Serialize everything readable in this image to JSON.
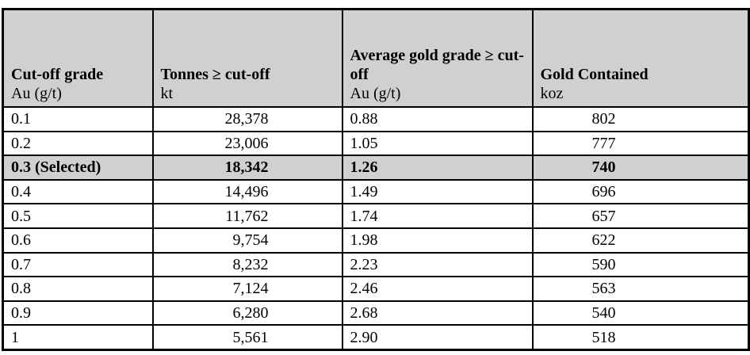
{
  "table": {
    "columns": [
      {
        "title": "Cut-off grade",
        "unit": "Au (g/t)"
      },
      {
        "title": "Tonnes ≥ cut-off",
        "unit": "kt"
      },
      {
        "title": "Average gold grade ≥ cut-off",
        "unit": "Au (g/t)"
      },
      {
        "title": "Gold Contained",
        "unit": "koz"
      }
    ],
    "rows": [
      {
        "cutoff": "0.1",
        "tonnes": "28,378",
        "grade": "0.88",
        "gold": "802",
        "selected": false
      },
      {
        "cutoff": "0.2",
        "tonnes": "23,006",
        "grade": "1.05",
        "gold": "777",
        "selected": false
      },
      {
        "cutoff": "0.3 (Selected)",
        "tonnes": "18,342",
        "grade": "1.26",
        "gold": "740",
        "selected": true
      },
      {
        "cutoff": "0.4",
        "tonnes": "14,496",
        "grade": "1.49",
        "gold": "696",
        "selected": false
      },
      {
        "cutoff": "0.5",
        "tonnes": "11,762",
        "grade": "1.74",
        "gold": "657",
        "selected": false
      },
      {
        "cutoff": "0.6",
        "tonnes": "9,754",
        "grade": "1.98",
        "gold": "622",
        "selected": false
      },
      {
        "cutoff": "0.7",
        "tonnes": "8,232",
        "grade": "2.23",
        "gold": "590",
        "selected": false
      },
      {
        "cutoff": "0.8",
        "tonnes": "7,124",
        "grade": "2.46",
        "gold": "563",
        "selected": false
      },
      {
        "cutoff": "0.9",
        "tonnes": "6,280",
        "grade": "2.68",
        "gold": "540",
        "selected": false
      },
      {
        "cutoff": "1",
        "tonnes": "5,561",
        "grade": "2.90",
        "gold": "518",
        "selected": false
      }
    ],
    "colors": {
      "header_bg": "#d0d0d0",
      "selected_row_bg": "#d0d0d0",
      "border": "#000000",
      "page_bg": "#ffffff"
    }
  }
}
